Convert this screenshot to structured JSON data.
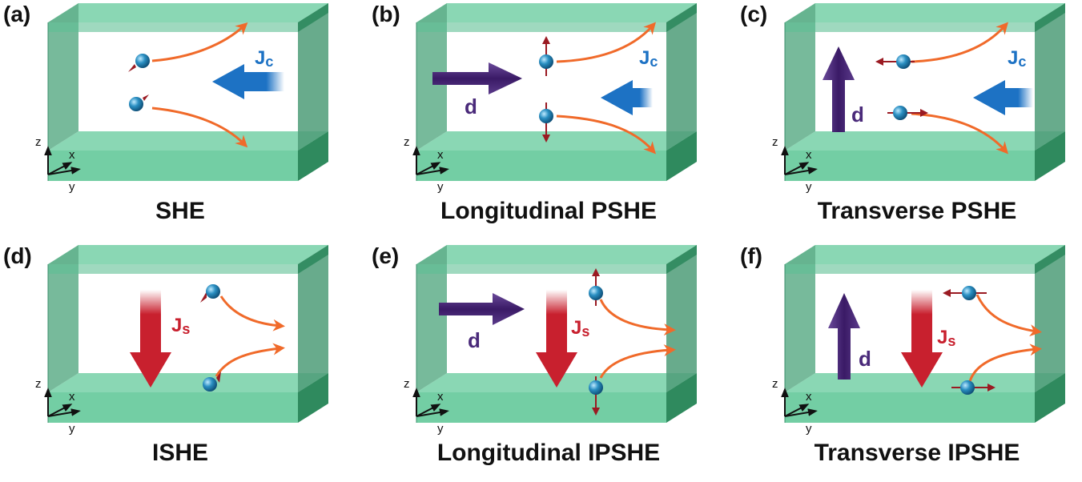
{
  "panels": {
    "a": {
      "tag": "(a)",
      "caption": "SHE",
      "current": "Jc"
    },
    "b": {
      "tag": "(b)",
      "caption": "Longitudinal PSHE",
      "current": "Jc",
      "vector": "d"
    },
    "c": {
      "tag": "(c)",
      "caption": "Transverse PSHE",
      "current": "Jc",
      "vector": "d"
    },
    "d": {
      "tag": "(d)",
      "caption": "ISHE",
      "current": "Js"
    },
    "e": {
      "tag": "(e)",
      "caption": "Longitudinal IPSHE",
      "current": "Js",
      "vector": "d"
    },
    "f": {
      "tag": "(f)",
      "caption": "Transverse IPSHE",
      "current": "Js",
      "vector": "d"
    }
  },
  "axes": {
    "z": "z",
    "x": "x",
    "y": "y"
  },
  "colors": {
    "slab": "#5fbf95",
    "slab_dark": "#3c8f6c",
    "charge_current": "#1d72c4",
    "spin_current": "#c8202e",
    "d_vector": "#4a2a7a",
    "trajectory": "#f06a2a",
    "electron": "#2a8fc2",
    "spin_arrow": "#9a1a22"
  }
}
